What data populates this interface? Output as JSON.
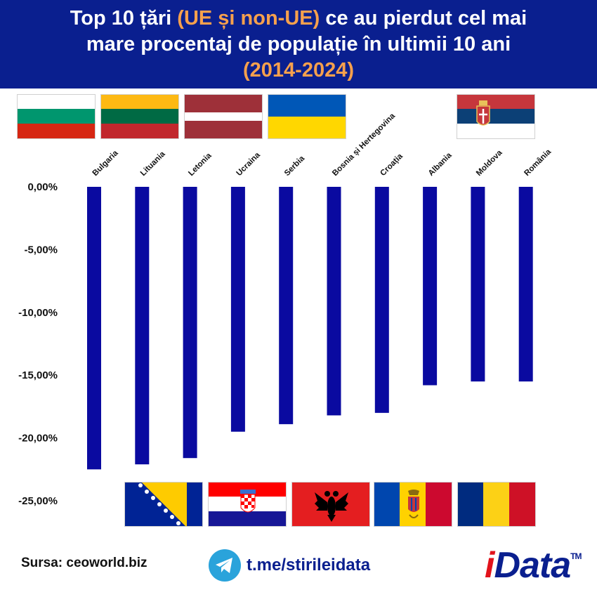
{
  "header": {
    "title_part1": "Top 10 țări ",
    "title_highlight": "(UE și non-UE)",
    "title_part2": " ce au pierdut cel mai",
    "title_line2": "mare procentaj de populație în ultimii 10 ani",
    "title_line3": "(2014-2024)",
    "colors": {
      "background": "#0a1f8f",
      "text": "#ffffff",
      "highlight": "#f6a04d"
    }
  },
  "chart_data": {
    "type": "bar",
    "categories": [
      "Bulgaria",
      "Lituania",
      "Letonia",
      "Ucraina",
      "Serbia",
      "Bosnia și Hertegovina",
      "Croația",
      "Albania",
      "Moldova",
      "România"
    ],
    "values": [
      -22.5,
      -22.1,
      -21.6,
      -19.5,
      -18.9,
      -18.2,
      -18.0,
      -15.8,
      -15.5,
      -15.5
    ],
    "yticks": [
      "0,00%",
      "-5,00%",
      "-10,00%",
      "-15,00%",
      "-20,00%",
      "-25,00%"
    ],
    "ytick_values": [
      0,
      -5,
      -10,
      -15,
      -20,
      -25
    ],
    "ylim": [
      -25,
      0
    ],
    "bar_color": "#0a0aa0",
    "grid": false,
    "title": "",
    "xlabel": "",
    "ylabel": ""
  },
  "flags_top": [
    {
      "icon": "bulgaria-flag-icon",
      "colors": [
        "#ffffff",
        "#00966e",
        "#d62612"
      ]
    },
    {
      "icon": "lithuania-flag-icon",
      "colors": [
        "#fdb913",
        "#006a44",
        "#c1272d"
      ]
    },
    {
      "icon": "latvia-flag-icon",
      "colors": [
        "#9e3039",
        "#ffffff",
        "#9e3039"
      ]
    },
    {
      "icon": "ukraine-flag-icon",
      "colors": [
        "#0057b7",
        "#ffd700"
      ]
    },
    {
      "icon": "serbia-flag-icon",
      "colors": [
        "#c6363c",
        "#0c4076",
        "#ffffff"
      ]
    }
  ],
  "flags_bottom": [
    {
      "icon": "bosnia-flag-icon",
      "colors": [
        "#002395",
        "#fecb00",
        "#ffffff"
      ]
    },
    {
      "icon": "croatia-flag-icon",
      "colors": [
        "#ff0000",
        "#ffffff",
        "#171796"
      ]
    },
    {
      "icon": "albania-flag-icon",
      "colors": [
        "#e41e20",
        "#000000"
      ]
    },
    {
      "icon": "moldova-flag-icon",
      "colors": [
        "#0046ae",
        "#ffd200",
        "#cc092f"
      ]
    },
    {
      "icon": "romania-flag-icon",
      "colors": [
        "#002b7f",
        "#fcd116",
        "#ce1126"
      ]
    }
  ],
  "footer": {
    "source": "Sursa: ceoworld.biz",
    "telegram": "t.me/stirileidata",
    "logo_i": "i",
    "logo_rest": "Data",
    "logo_tm": "TM"
  }
}
